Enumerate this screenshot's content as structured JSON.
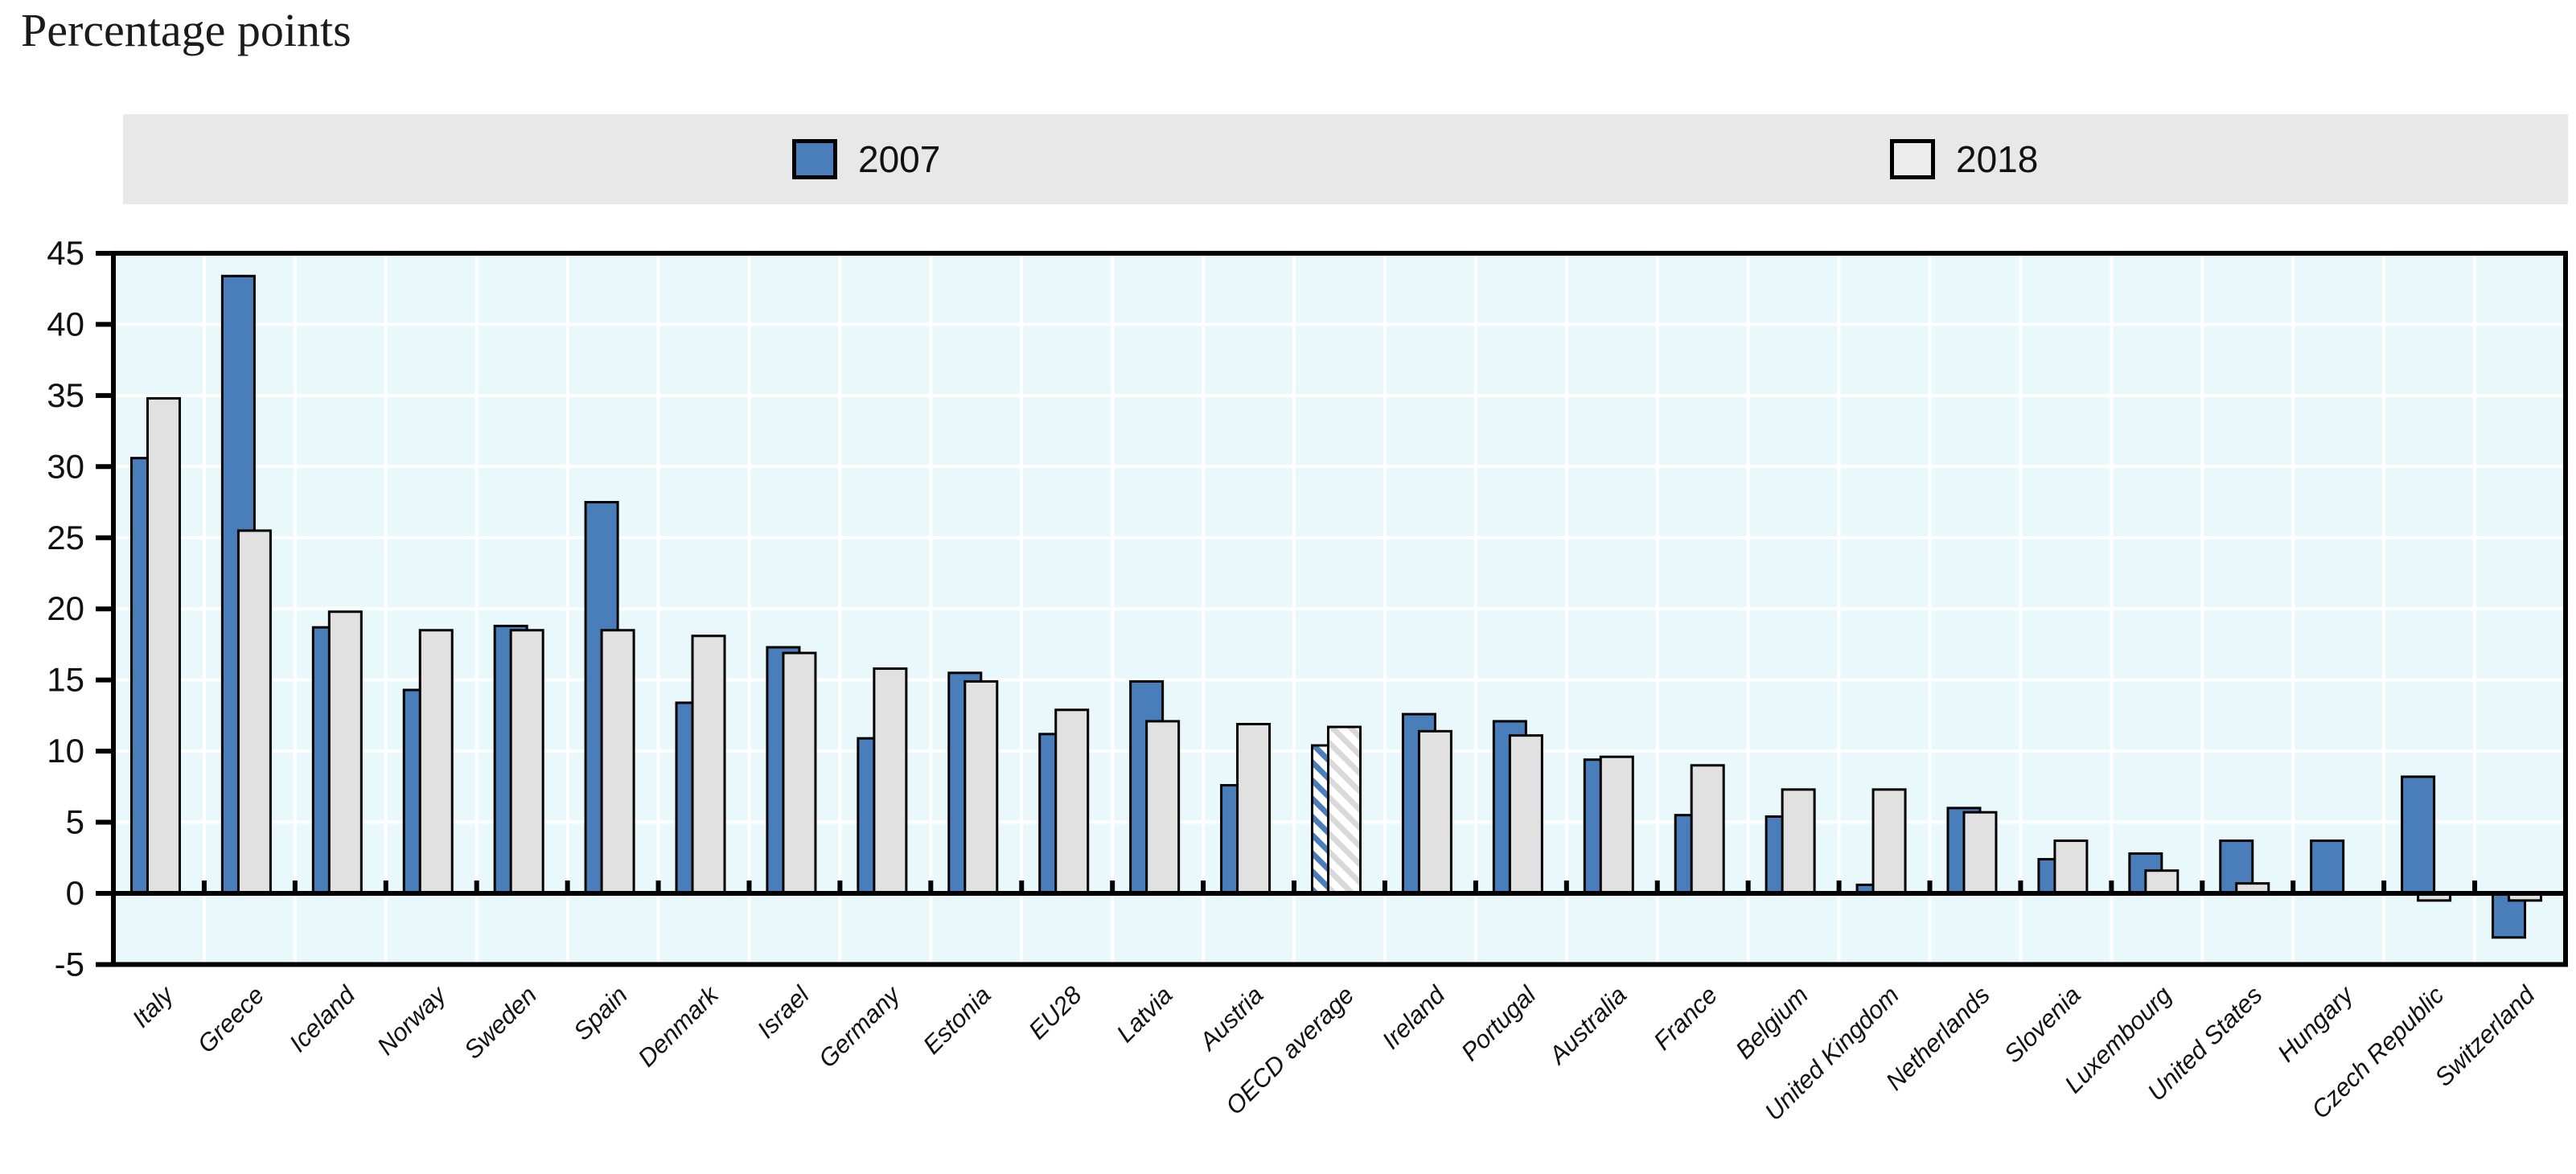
{
  "page": {
    "title": "Percentage points"
  },
  "legend": {
    "band_color": "#e8e8e8",
    "items": [
      {
        "label": "2007",
        "swatch_color": "#4a7ebb",
        "swatch_border": "#000000"
      },
      {
        "label": "2018",
        "swatch_color": "#ededed",
        "swatch_border": "#000000"
      }
    ]
  },
  "chart_data": {
    "type": "bar",
    "title": "Percentage points",
    "xlabel": "",
    "ylabel": "Percentage points",
    "ylim": [
      -5,
      45
    ],
    "yticks": [
      45,
      40,
      35,
      30,
      25,
      20,
      15,
      10,
      5,
      0,
      -5
    ],
    "grid": true,
    "legend_position": "top",
    "plot_bg": "#e9f8fb",
    "gridline_color": "#ffffff",
    "bar_stroke": "#000000",
    "categories": [
      "Italy",
      "Greece",
      "Iceland",
      "Norway",
      "Sweden",
      "Spain",
      "Denmark",
      "Israel",
      "Germany",
      "Estonia",
      "EU28",
      "Latvia",
      "Austria",
      "OECD average",
      "Ireland",
      "Portugal",
      "Australia",
      "France",
      "Belgium",
      "United Kingdom",
      "Netherlands",
      "Slovenia",
      "Luxembourg",
      "United States",
      "Hungary",
      "Czech Republic",
      "Switzerland"
    ],
    "hatched_category": "OECD average",
    "series": [
      {
        "name": "2007",
        "color": "#4a7ebb",
        "values": [
          30.6,
          43.4,
          18.7,
          14.3,
          18.8,
          27.5,
          13.4,
          17.3,
          10.9,
          15.5,
          11.2,
          14.9,
          7.6,
          10.4,
          12.6,
          12.1,
          9.4,
          5.5,
          5.4,
          0.6,
          6.0,
          2.4,
          2.8,
          3.7,
          3.7,
          8.2,
          -3.1
        ]
      },
      {
        "name": "2018",
        "color": "#e1e1e1",
        "values": [
          34.8,
          25.5,
          19.8,
          18.5,
          18.5,
          18.5,
          18.1,
          16.9,
          15.8,
          14.9,
          12.9,
          12.1,
          11.9,
          11.7,
          11.4,
          11.1,
          9.6,
          9.0,
          7.3,
          7.3,
          5.7,
          3.7,
          1.6,
          0.7,
          0,
          -0.5,
          -0.5
        ]
      }
    ]
  }
}
